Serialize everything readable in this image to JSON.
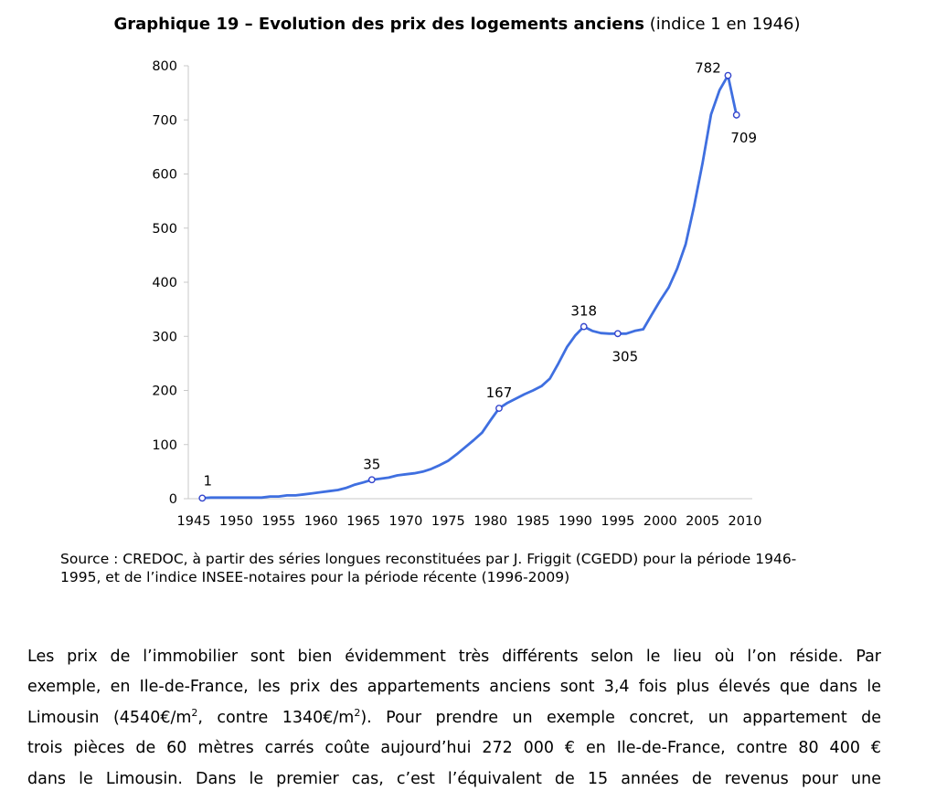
{
  "title": {
    "bold": "Graphique 19 – Evolution des prix des logements anciens",
    "normal": "(indice 1 en 1946)"
  },
  "chart_data": {
    "type": "line",
    "title": "Graphique 19 – Evolution des prix des logements anciens (indice 1 en 1946)",
    "xlabel": "",
    "ylabel": "",
    "xlim": [
      1945,
      2010
    ],
    "ylim": [
      0,
      800
    ],
    "x_ticks": [
      "1945",
      "1950",
      "1955",
      "1960",
      "1965",
      "1970",
      "1975",
      "1980",
      "1985",
      "1990",
      "1995",
      "2000",
      "2005",
      "2010"
    ],
    "y_ticks": [
      "0",
      "100",
      "200",
      "300",
      "400",
      "500",
      "600",
      "700",
      "800"
    ],
    "grid": false,
    "series": [
      {
        "color": "#3f6fe0",
        "x": [
          1946,
          1947,
          1948,
          1949,
          1950,
          1951,
          1952,
          1953,
          1954,
          1955,
          1956,
          1957,
          1958,
          1959,
          1960,
          1961,
          1962,
          1963,
          1964,
          1965,
          1966,
          1967,
          1968,
          1969,
          1970,
          1971,
          1972,
          1973,
          1974,
          1975,
          1976,
          1977,
          1978,
          1979,
          1980,
          1981,
          1982,
          1983,
          1984,
          1985,
          1986,
          1987,
          1988,
          1989,
          1990,
          1991,
          1992,
          1993,
          1994,
          1995,
          1996,
          1997,
          1998,
          1999,
          2000,
          2001,
          2002,
          2003,
          2004,
          2005,
          2006,
          2007,
          2008,
          2009
        ],
        "y": [
          1,
          2,
          2,
          2,
          2,
          2,
          2,
          2,
          4,
          4,
          6,
          6,
          8,
          10,
          12,
          14,
          16,
          20,
          26,
          30,
          35,
          37,
          39,
          43,
          45,
          47,
          50,
          55,
          62,
          70,
          82,
          95,
          108,
          122,
          145,
          167,
          177,
          185,
          193,
          200,
          208,
          222,
          250,
          280,
          302,
          318,
          310,
          306,
          305,
          305,
          305,
          310,
          313,
          340,
          366,
          390,
          425,
          470,
          540,
          620,
          710,
          755,
          782,
          709
        ]
      }
    ],
    "annotations": [
      {
        "x": 1946,
        "y": 1,
        "label": "1",
        "pos": "above"
      },
      {
        "x": 1966,
        "y": 35,
        "label": "35",
        "pos": "above"
      },
      {
        "x": 1981,
        "y": 167,
        "label": "167",
        "pos": "above"
      },
      {
        "x": 1991,
        "y": 318,
        "label": "318",
        "pos": "above"
      },
      {
        "x": 1995,
        "y": 305,
        "label": "305",
        "pos": "below"
      },
      {
        "x": 2008,
        "y": 782,
        "label": "782",
        "pos": "above-left"
      },
      {
        "x": 2009,
        "y": 709,
        "label": "709",
        "pos": "below"
      }
    ]
  },
  "source": {
    "line1": "Source : CREDOC, à partir des séries longues reconstituées par J. Friggit (CGEDD) pour la période 1946-",
    "line2": "1995, et de l’indice INSEE-notaires pour la période récente (1996-2009)"
  },
  "paragraph": {
    "l1": "Les prix de l’immobilier sont bien évidemment très différents selon le lieu où l’on réside. Par",
    "l2": "exemple, en Ile-de-France, les prix des appartements anciens sont 3,4 fois plus élevés que dans le",
    "l3a": "Limousin (4540€/m",
    "l3b": ", contre 1340€/m",
    "l3c": "). Pour prendre un exemple concret, un appartement de",
    "sup": "2",
    "l4": "trois pièces de 60 mètres carrés coûte aujourd’hui 272 000 € en Ile-de-France, contre 80 400 €",
    "l5": "dans le Limousin. Dans le premier cas, c’est l’équivalent de 15 années de revenus pour une"
  }
}
